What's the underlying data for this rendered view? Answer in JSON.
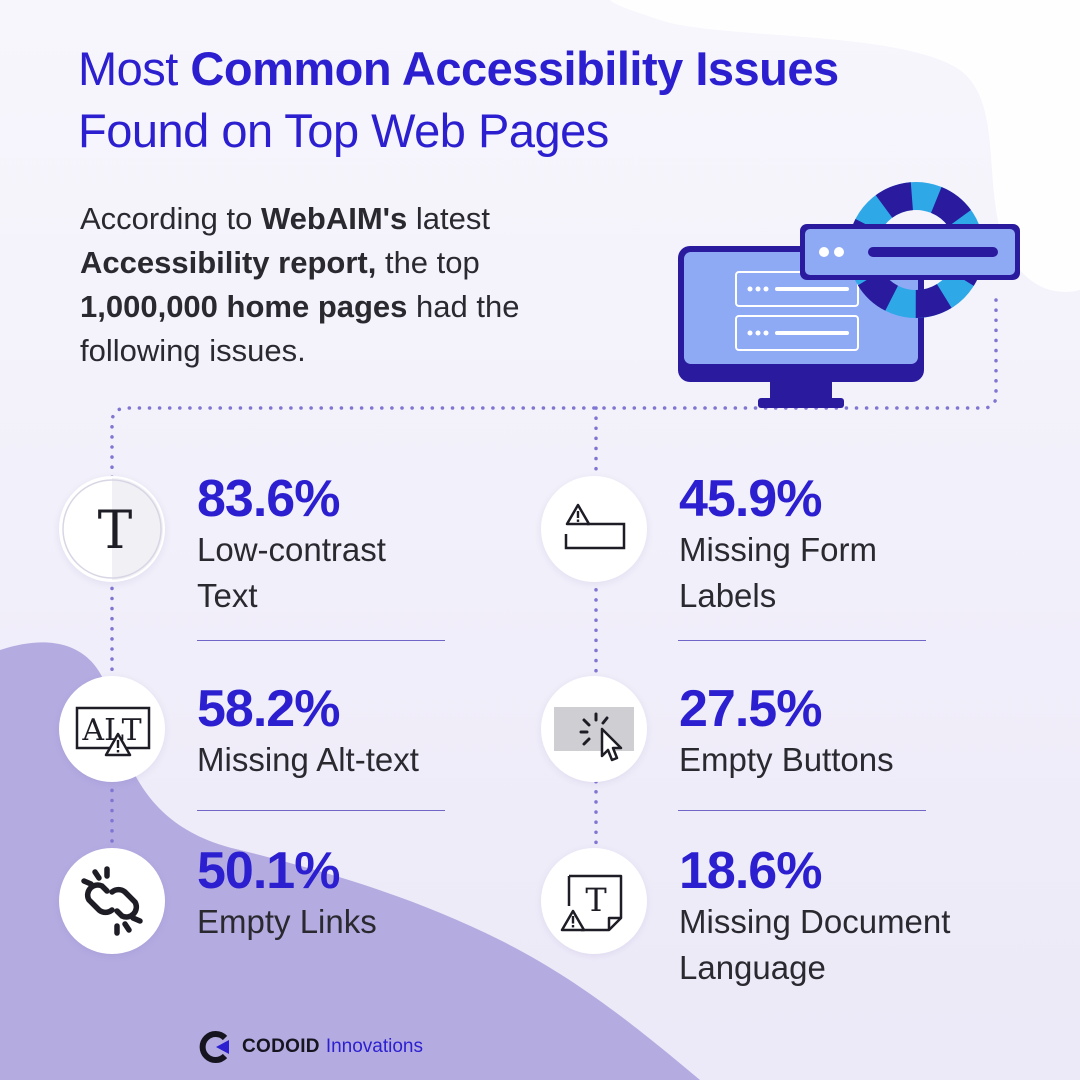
{
  "header": {
    "title_pre": "Most ",
    "title_bold": "Common Accessibility Issues",
    "title_line2": "Found on Top Web Pages"
  },
  "intro": {
    "p1": "According to ",
    "b1": "WebAIM's",
    "p2": " latest ",
    "b2": "Accessibility report,",
    "p3": " the top ",
    "b3": "1,000,000 home pages",
    "p4": " had the following issues."
  },
  "stats": [
    {
      "percent": "83.6%",
      "label_line1": "Low-contrast",
      "label_line2": "Text",
      "icon": "low-contrast-text-icon"
    },
    {
      "percent": "58.2%",
      "label_line1": "Missing Alt-text",
      "label_line2": "",
      "icon": "alt-text-warning-icon"
    },
    {
      "percent": "50.1%",
      "label_line1": "Empty Links",
      "label_line2": "",
      "icon": "broken-link-icon"
    },
    {
      "percent": "45.9%",
      "label_line1": "Missing Form",
      "label_line2": "Labels",
      "icon": "form-field-warning-icon"
    },
    {
      "percent": "27.5%",
      "label_line1": "Empty Buttons",
      "label_line2": "",
      "icon": "empty-button-click-icon"
    },
    {
      "percent": "18.6%",
      "label_line1": "Missing Document",
      "label_line2": "Language",
      "icon": "document-warning-icon"
    }
  ],
  "icon_text": {
    "t": "T",
    "alt": "ALT"
  },
  "footer": {
    "brand": "CODOID",
    "sub": "Innovations"
  },
  "colors": {
    "accent": "#2b1fd0",
    "text": "#2a2930",
    "lavender": "#b3abe0",
    "monitor_blue": "#8faaf5",
    "monitor_dark": "#2a1a9e",
    "ring_light": "#2fa8e8"
  }
}
